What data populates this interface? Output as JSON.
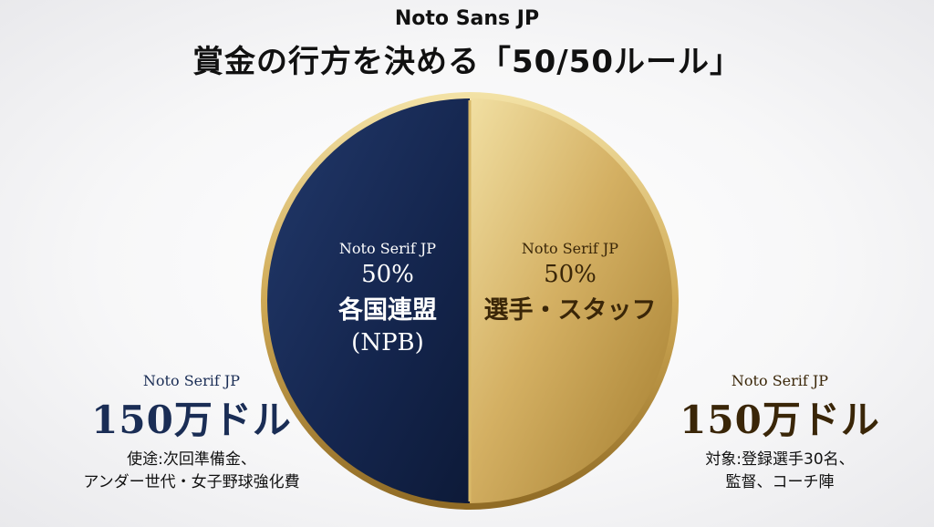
{
  "header": {
    "font_label": "Noto Sans JP",
    "title": "賞金の行方を決める「50/50ルール」"
  },
  "colors": {
    "left_slice": "#14254d",
    "right_slice": "#c7a24d",
    "ring": "#d9b968"
  },
  "chart_data": {
    "type": "pie",
    "title": "賞金の行方を決める「50/50ルール」",
    "slices": [
      {
        "font_label": "Noto Serif JP",
        "percent_label": "50%",
        "value": 50,
        "label": "各国連盟",
        "sublabel": "(NPB)",
        "color": "#14254d"
      },
      {
        "font_label": "Noto Serif JP",
        "percent_label": "50%",
        "value": 50,
        "label": "選手・スタッフ",
        "sublabel": "",
        "color": "#c7a24d"
      }
    ]
  },
  "left_panel": {
    "font_label": "Noto Serif JP",
    "amount": "150万ドル",
    "desc_line1": "使途:次回準備金、",
    "desc_line2": "アンダー世代・女子野球強化費"
  },
  "right_panel": {
    "font_label": "Noto Serif JP",
    "amount": "150万ドル",
    "desc_line1": "対象:登録選手30名、",
    "desc_line2": "監督、コーチ陣"
  }
}
